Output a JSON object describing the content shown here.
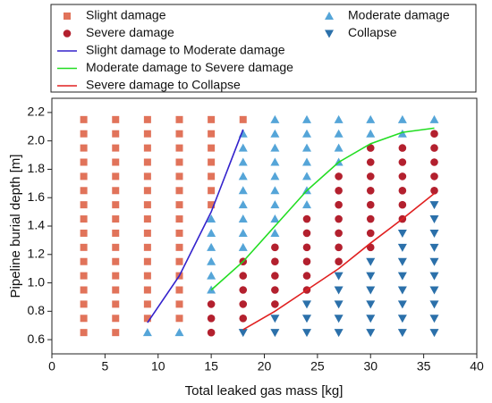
{
  "chart_data": {
    "type": "scatter",
    "xlabel": "Total leaked gas mass [kg]",
    "ylabel": "Pipeline burial depth [m]",
    "xlim": [
      0,
      40
    ],
    "xticks": [
      0,
      5,
      10,
      15,
      20,
      25,
      30,
      35,
      40
    ],
    "ylim": [
      0.5,
      2.3
    ],
    "yticks": [
      0.6,
      0.8,
      {
        "value": 1.0,
        "label": "1.0"
      },
      1.2,
      1.4,
      1.6,
      1.8,
      {
        "value": 2.0,
        "label": "2.0"
      },
      2.2
    ],
    "series": [
      {
        "name": "Slight damage",
        "color": "#e1735a",
        "marker": "square",
        "x": [
          3,
          3,
          3,
          3,
          3,
          3,
          3,
          3,
          3,
          3,
          3,
          3,
          3,
          3,
          3,
          3,
          6,
          6,
          6,
          6,
          6,
          6,
          6,
          6,
          6,
          6,
          6,
          6,
          6,
          6,
          6,
          6,
          9,
          9,
          9,
          9,
          9,
          9,
          9,
          9,
          9,
          9,
          9,
          9,
          9,
          9,
          9,
          12,
          12,
          12,
          12,
          12,
          12,
          12,
          12,
          12,
          12,
          12,
          12,
          12,
          12,
          12,
          15,
          15,
          15,
          15,
          15,
          15,
          15,
          18
        ],
        "values": [
          0.65,
          0.75,
          0.85,
          0.95,
          1.05,
          1.15,
          1.25,
          1.35,
          1.45,
          1.55,
          1.65,
          1.75,
          1.85,
          1.95,
          2.05,
          2.15,
          0.65,
          0.75,
          0.85,
          0.95,
          1.05,
          1.15,
          1.25,
          1.35,
          1.45,
          1.55,
          1.65,
          1.75,
          1.85,
          1.95,
          2.05,
          2.15,
          0.75,
          0.85,
          0.95,
          1.05,
          1.15,
          1.25,
          1.35,
          1.45,
          1.55,
          1.65,
          1.75,
          1.85,
          1.95,
          2.05,
          2.15,
          0.75,
          0.85,
          0.95,
          1.05,
          1.15,
          1.25,
          1.35,
          1.45,
          1.55,
          1.65,
          1.75,
          1.85,
          1.95,
          2.05,
          2.15,
          1.55,
          1.65,
          1.75,
          1.85,
          1.95,
          2.05,
          2.15,
          2.15
        ]
      },
      {
        "name": "Moderate damage",
        "color": "#55a5d8",
        "marker": "triangle-up",
        "x": [
          9,
          12,
          15,
          15,
          15,
          15,
          15,
          15,
          18,
          18,
          18,
          18,
          18,
          18,
          18,
          18,
          18,
          21,
          21,
          21,
          21,
          21,
          21,
          21,
          21,
          21,
          24,
          24,
          24,
          24,
          24,
          24,
          24,
          27,
          27,
          27,
          27,
          30,
          30,
          33,
          33,
          36
        ],
        "values": [
          0.65,
          0.65,
          0.95,
          1.05,
          1.15,
          1.25,
          1.35,
          1.45,
          1.25,
          1.35,
          1.45,
          1.55,
          1.65,
          1.75,
          1.85,
          1.95,
          2.05,
          1.35,
          1.45,
          1.55,
          1.65,
          1.75,
          1.85,
          1.95,
          2.05,
          2.15,
          1.55,
          1.65,
          1.75,
          1.85,
          1.95,
          2.05,
          2.15,
          1.85,
          1.95,
          2.05,
          2.15,
          2.05,
          2.15,
          2.05,
          2.15,
          2.15
        ]
      },
      {
        "name": "Severe damage",
        "color": "#b3202e",
        "marker": "circle",
        "x": [
          15,
          15,
          15,
          18,
          18,
          18,
          18,
          18,
          21,
          21,
          21,
          21,
          21,
          24,
          24,
          24,
          24,
          24,
          24,
          27,
          27,
          27,
          27,
          27,
          27,
          27,
          30,
          30,
          30,
          30,
          30,
          30,
          30,
          30,
          33,
          33,
          33,
          33,
          33,
          33,
          36,
          36,
          36,
          36,
          36
        ],
        "values": [
          0.65,
          0.75,
          0.85,
          0.75,
          0.85,
          0.95,
          1.05,
          1.15,
          0.85,
          0.95,
          1.05,
          1.15,
          1.25,
          0.95,
          1.05,
          1.15,
          1.25,
          1.35,
          1.45,
          1.15,
          1.25,
          1.35,
          1.45,
          1.55,
          1.65,
          1.75,
          1.25,
          1.35,
          1.45,
          1.55,
          1.65,
          1.75,
          1.85,
          1.95,
          1.45,
          1.55,
          1.65,
          1.75,
          1.85,
          1.95,
          1.65,
          1.75,
          1.85,
          1.95,
          2.05
        ]
      },
      {
        "name": "Collapse",
        "color": "#2b70aa",
        "marker": "triangle-down",
        "x": [
          18,
          21,
          21,
          24,
          24,
          24,
          27,
          27,
          27,
          27,
          27,
          30,
          30,
          30,
          30,
          30,
          30,
          33,
          33,
          33,
          33,
          33,
          33,
          33,
          33,
          36,
          36,
          36,
          36,
          36,
          36,
          36,
          36,
          36,
          36
        ],
        "values": [
          0.65,
          0.65,
          0.75,
          0.65,
          0.75,
          0.85,
          0.65,
          0.75,
          0.85,
          0.95,
          1.05,
          0.65,
          0.75,
          0.85,
          0.95,
          1.05,
          1.15,
          0.65,
          0.75,
          0.85,
          0.95,
          1.05,
          1.15,
          1.25,
          1.35,
          0.65,
          0.75,
          0.85,
          0.95,
          1.05,
          1.15,
          1.25,
          1.35,
          1.45,
          1.55
        ]
      },
      {
        "name": "Slight damage to Moderate damage",
        "color": "#3322cc",
        "marker": "line",
        "x": [
          9,
          12,
          15,
          18
        ],
        "values": [
          0.72,
          1.05,
          1.5,
          2.08
        ]
      },
      {
        "name": "Moderate damage to Severe damage",
        "color": "#22dd22",
        "marker": "line",
        "x": [
          15,
          18,
          21,
          24,
          27,
          30,
          33,
          36
        ],
        "values": [
          0.95,
          1.15,
          1.4,
          1.65,
          1.85,
          1.98,
          2.06,
          2.09
        ]
      },
      {
        "name": "Severe damage to Collapse",
        "color": "#e02020",
        "marker": "line",
        "x": [
          18,
          21,
          24,
          27,
          30,
          33,
          36
        ],
        "values": [
          0.67,
          0.8,
          0.95,
          1.1,
          1.28,
          1.45,
          1.63
        ]
      }
    ]
  }
}
